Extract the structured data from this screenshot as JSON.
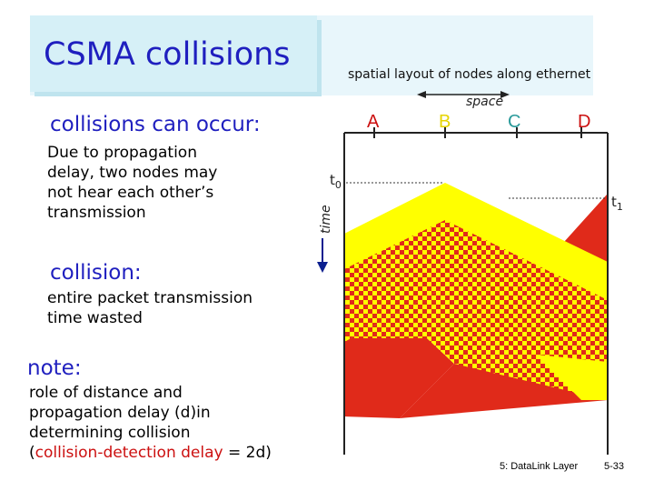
{
  "slide": {
    "title": "CSMA collisions",
    "layout_caption": "spatial layout of nodes along ethernet",
    "sections": [
      {
        "heading": "collisions can occur:",
        "text": [
          "Due to propagation",
          "delay, two nodes may",
          "not hear each other’s",
          "transmission"
        ]
      },
      {
        "heading": "collision:",
        "text": [
          "entire packet transmission",
          "time wasted"
        ]
      },
      {
        "heading": "note:",
        "text": [
          "role of distance and",
          "propagation delay (d)in",
          "determining collision"
        ]
      }
    ],
    "note_last_line": {
      "open": "(",
      "highlight": "collision-detection delay",
      "close": " = 2d)"
    },
    "footer_left": "5: DataLink Layer",
    "footer_right": "5-33"
  },
  "diagram": {
    "space_label": "space",
    "time_label": "time",
    "nodes": [
      "A",
      "B",
      "C",
      "D"
    ],
    "t0": "t",
    "t0_sub": "0",
    "t1": "t",
    "t1_sub": "1",
    "colors": {
      "yellow": "#ffff00",
      "red": "#e02a1a",
      "title_blue": "#1f1fbf",
      "arrow_blue": "#0b1f8f"
    }
  }
}
